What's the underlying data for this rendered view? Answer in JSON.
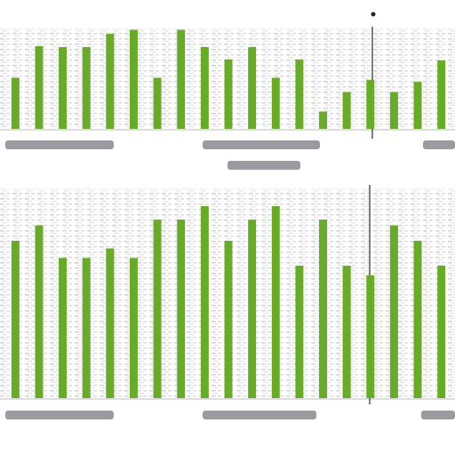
{
  "chart_data": [
    {
      "type": "bar",
      "color": "#6aaa2a",
      "ylim": [
        0,
        100
      ],
      "values": [
        50,
        81,
        80,
        80,
        93,
        97,
        50,
        97,
        80,
        68,
        80,
        50,
        68,
        17,
        36,
        48,
        36,
        46,
        67
      ]
    },
    {
      "type": "bar",
      "color": "#6aaa2a",
      "ylim": [
        0,
        100
      ],
      "values": [
        82,
        90,
        73,
        73,
        78,
        73,
        93,
        93,
        100,
        82,
        93,
        100,
        69,
        93,
        69,
        64,
        90,
        82,
        69
      ]
    }
  ]
}
